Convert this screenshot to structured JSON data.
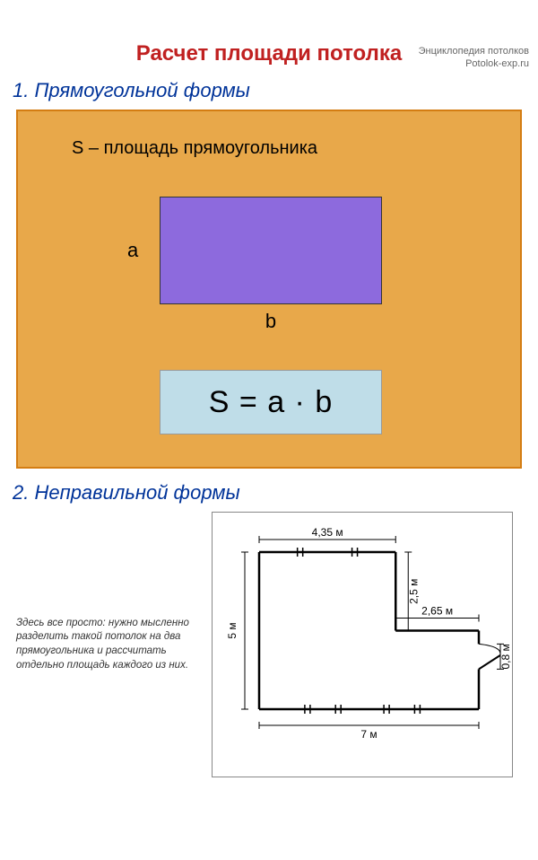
{
  "credit": {
    "line1": "Энциклопедия потолков",
    "line2": "Potolok-exp.ru"
  },
  "title": {
    "text": "Расчет площади потолка",
    "color": "#c02020"
  },
  "section1": {
    "heading": "1. Прямоугольной формы",
    "heading_color": "#003399",
    "panel_bg": "#e8a84a",
    "panel_border": "#d47d12",
    "caption": "S – площадь прямоугольника",
    "rect_fill": "#8d6add",
    "label_a": "a",
    "label_b": "b",
    "formula_bg": "#bfdde8",
    "formula": "S = a · b"
  },
  "section2": {
    "heading": "2. Неправильной формы",
    "heading_color": "#003399",
    "description": "Здесь все просто: нужно мысленно разделить такой потолок на два прямоугольника и рассчитать отдельно площадь каждого из них.",
    "plan": {
      "stroke": "#000000",
      "fill": "#ffffff",
      "bg": "#ffffff",
      "label_font": 12,
      "top_w": "4,35 м",
      "notch_h": "2,5 м",
      "notch_w": "2,65 м",
      "door_h": "0,8 м",
      "left_h": "5 м",
      "bottom_w": "7 м"
    }
  }
}
